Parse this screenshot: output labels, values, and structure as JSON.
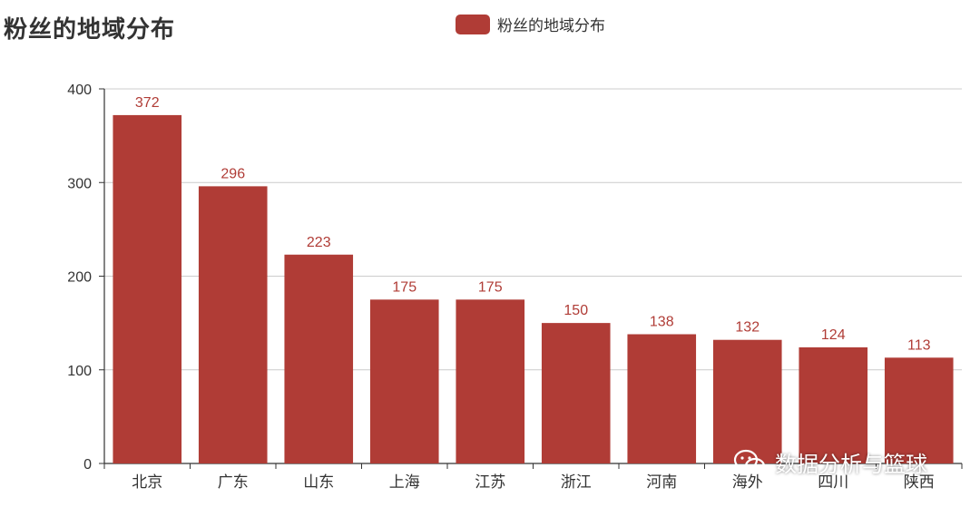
{
  "colors": {
    "bar": "#b03c36",
    "axis": "#333333",
    "grid": "#cccccc",
    "label": "#b03c36",
    "text": "#333333"
  },
  "chart_data": {
    "type": "bar",
    "title": "粉丝的地域分布",
    "categories": [
      "北京",
      "广东",
      "山东",
      "上海",
      "江苏",
      "浙江",
      "河南",
      "海外",
      "四川",
      "陕西"
    ],
    "series": [
      {
        "name": "粉丝的地域分布",
        "values": [
          372,
          296,
          223,
          175,
          175,
          150,
          138,
          132,
          124,
          113
        ]
      }
    ],
    "ylim": [
      0,
      400
    ],
    "yticks": [
      0,
      100,
      200,
      300,
      400
    ],
    "grid": true,
    "legend_position": "top-center",
    "data_labels": true
  },
  "watermark": {
    "icon": "wechat-icon",
    "text": "数据分析与篮球"
  }
}
